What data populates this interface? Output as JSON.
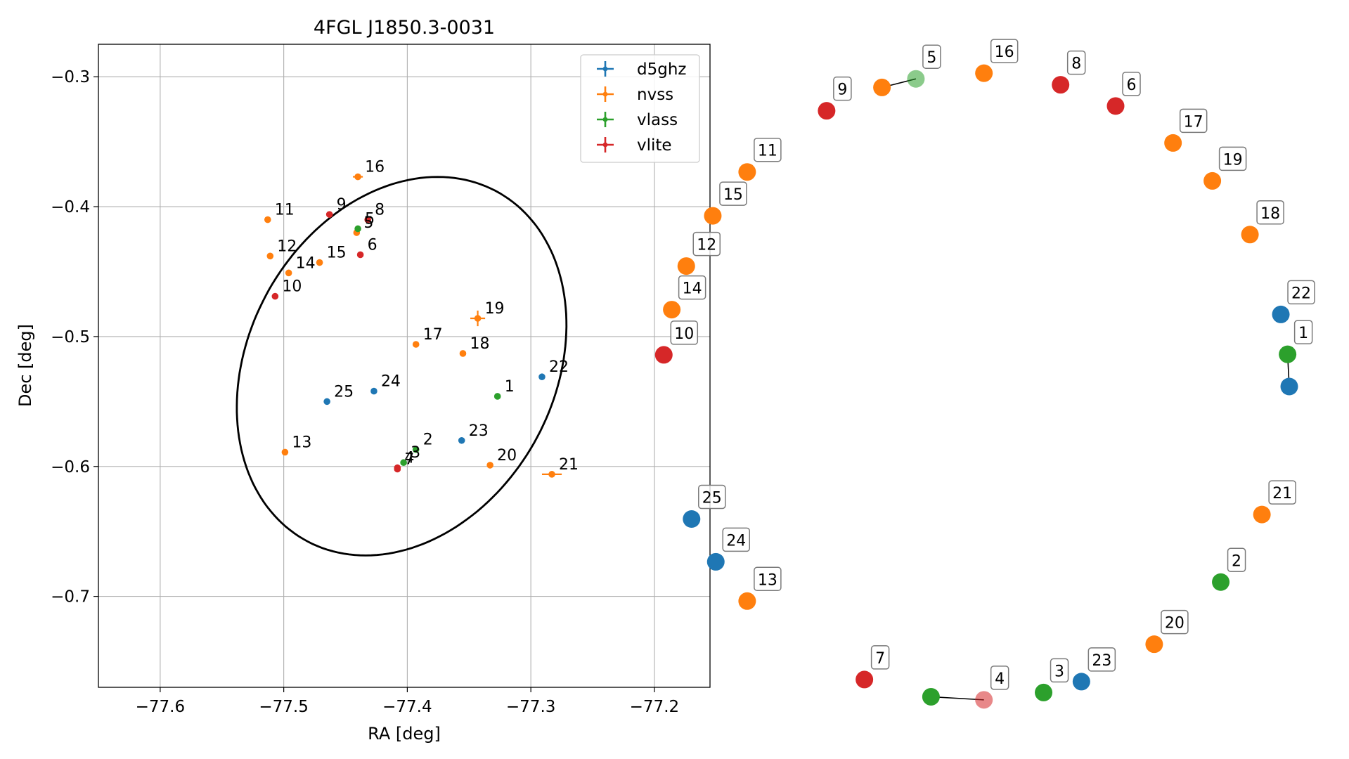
{
  "chart_data": [
    {
      "type": "scatter",
      "title": "4FGL J1850.3-0031",
      "xlabel": "RA [deg]",
      "ylabel": "Dec [deg]",
      "xlim": [
        -77.65,
        -77.155
      ],
      "ylim": [
        -0.77,
        -0.275
      ],
      "x_ticks": [
        -77.6,
        -77.5,
        -77.4,
        -77.3,
        -77.2
      ],
      "x_tick_labels": [
        "−77.6",
        "−77.5",
        "−77.4",
        "−77.3",
        "−77.2"
      ],
      "y_ticks": [
        -0.3,
        -0.4,
        -0.5,
        -0.6,
        -0.7
      ],
      "y_tick_labels": [
        "−0.3",
        "−0.4",
        "−0.5",
        "−0.6",
        "−0.7"
      ],
      "grid": true,
      "legend_position": "top-right",
      "series": [
        {
          "name": "d5ghz",
          "color": "#1f77b4",
          "points": [
            {
              "id": "22",
              "x": -77.291,
              "y": -0.531
            },
            {
              "id": "23",
              "x": -77.356,
              "y": -0.58
            },
            {
              "id": "24",
              "x": -77.427,
              "y": -0.542
            },
            {
              "id": "25",
              "x": -77.465,
              "y": -0.55
            }
          ]
        },
        {
          "name": "nvss",
          "color": "#ff7f0e",
          "points": [
            {
              "id": "5",
              "x": -77.441,
              "y": -0.42
            },
            {
              "id": "11",
              "x": -77.513,
              "y": -0.41
            },
            {
              "id": "12",
              "x": -77.511,
              "y": -0.438
            },
            {
              "id": "13",
              "x": -77.499,
              "y": -0.589
            },
            {
              "id": "14",
              "x": -77.496,
              "y": -0.451
            },
            {
              "id": "15",
              "x": -77.471,
              "y": -0.443
            },
            {
              "id": "16",
              "x": -77.44,
              "y": -0.377,
              "xerr": 0.004
            },
            {
              "id": "17",
              "x": -77.393,
              "y": -0.506
            },
            {
              "id": "18",
              "x": -77.355,
              "y": -0.513
            },
            {
              "id": "19",
              "x": -77.343,
              "y": -0.486,
              "xerr": 0.006,
              "yerr": 0.006
            },
            {
              "id": "20",
              "x": -77.333,
              "y": -0.599
            },
            {
              "id": "21",
              "x": -77.283,
              "y": -0.606,
              "xerr": 0.008
            }
          ]
        },
        {
          "name": "vlass",
          "color": "#2ca02c",
          "points": [
            {
              "id": "1",
              "x": -77.327,
              "y": -0.546
            },
            {
              "id": "2",
              "x": -77.393,
              "y": -0.587
            },
            {
              "id": "3",
              "x": -77.403,
              "y": -0.597
            },
            {
              "id": "5",
              "x": -77.44,
              "y": -0.417
            }
          ]
        },
        {
          "name": "vlite",
          "color": "#d62728",
          "points": [
            {
              "id": "4",
              "x": -77.408,
              "y": -0.601
            },
            {
              "id": "6",
              "x": -77.438,
              "y": -0.437
            },
            {
              "id": "7",
              "x": -77.408,
              "y": -0.602
            },
            {
              "id": "8",
              "x": -77.432,
              "y": -0.41
            },
            {
              "id": "9",
              "x": -77.463,
              "y": -0.406
            },
            {
              "id": "10",
              "x": -77.507,
              "y": -0.469
            }
          ]
        }
      ],
      "ellipse": {
        "color": "#000000",
        "center_x": -77.4046,
        "center_y": -0.5228,
        "semi_axis_1": 0.1552,
        "semi_axis_2": 0.1222,
        "angle_deg": 56
      }
    },
    {
      "type": "scatter",
      "title": "",
      "layout": "circle",
      "colors": {
        "d5ghz": "#1f77b4",
        "nvss": "#ff7f0e",
        "vlass": "#2ca02c",
        "vlite": "#d62728"
      },
      "nodes": [
        {
          "label": "1",
          "source": "vlass",
          "angle_deg": 5.9,
          "partner": {
            "source": "d5ghz",
            "angle_deg": 0.0
          }
        },
        {
          "label": "2",
          "source": "vlass",
          "angle_deg": -38.6
        },
        {
          "label": "3",
          "source": "vlass",
          "angle_deg": -77.5
        },
        {
          "label": "4",
          "source": "vlite",
          "angle_deg": -88.5,
          "faded": true,
          "partner": {
            "source": "vlass",
            "angle_deg": -98.2
          }
        },
        {
          "label": "5",
          "source": "vlass",
          "angle_deg": 101.0,
          "faded": true,
          "partner": {
            "source": "nvss",
            "angle_deg": 107.4
          }
        },
        {
          "label": "6",
          "source": "vlite",
          "angle_deg": 63.5
        },
        {
          "label": "7",
          "source": "vlite",
          "angle_deg": -110.8
        },
        {
          "label": "8",
          "source": "vlite",
          "angle_deg": 74.3
        },
        {
          "label": "9",
          "source": "vlite",
          "angle_deg": 118.4
        },
        {
          "label": "10",
          "source": "vlite",
          "angle_deg": 174.2
        },
        {
          "label": "11",
          "source": "nvss",
          "angle_deg": 136.8
        },
        {
          "label": "12",
          "source": "nvss",
          "angle_deg": 157.4
        },
        {
          "label": "13",
          "source": "nvss",
          "angle_deg": -136.8
        },
        {
          "label": "14",
          "source": "nvss",
          "angle_deg": 165.8
        },
        {
          "label": "15",
          "source": "nvss",
          "angle_deg": 147.0
        },
        {
          "label": "16",
          "source": "nvss",
          "angle_deg": 88.5
        },
        {
          "label": "17",
          "source": "nvss",
          "angle_deg": 51.0
        },
        {
          "label": "18",
          "source": "nvss",
          "angle_deg": 29.0
        },
        {
          "label": "19",
          "source": "nvss",
          "angle_deg": 41.0
        },
        {
          "label": "20",
          "source": "nvss",
          "angle_deg": -55.3
        },
        {
          "label": "21",
          "source": "nvss",
          "angle_deg": -24.1
        },
        {
          "label": "22",
          "source": "d5ghz",
          "angle_deg": 13.3
        },
        {
          "label": "23",
          "source": "d5ghz",
          "angle_deg": -70.3
        },
        {
          "label": "24",
          "source": "d5ghz",
          "angle_deg": -146.0
        },
        {
          "label": "25",
          "source": "d5ghz",
          "angle_deg": -155.0
        }
      ]
    }
  ]
}
